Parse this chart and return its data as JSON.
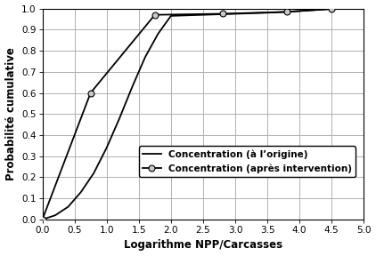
{
  "line1_x": [
    0.0,
    0.2,
    0.4,
    0.6,
    0.8,
    1.0,
    1.2,
    1.4,
    1.6,
    1.8,
    2.0,
    2.5,
    2.8,
    3.0,
    3.5,
    3.8,
    4.0,
    4.5
  ],
  "line1_y": [
    0.0,
    0.02,
    0.06,
    0.13,
    0.22,
    0.34,
    0.48,
    0.63,
    0.77,
    0.88,
    0.965,
    0.97,
    0.973,
    0.975,
    0.98,
    0.984,
    0.988,
    0.998
  ],
  "line2_x": [
    0.0,
    0.75,
    1.75,
    2.8,
    3.8,
    4.5
  ],
  "line2_y": [
    0.0,
    0.6,
    0.97,
    0.975,
    0.984,
    0.998
  ],
  "line1_color": "#000000",
  "line2_color": "#000000",
  "line1_label": "Concentration (à l’origine)",
  "line2_label": "Concentration (après intervention)",
  "xlabel": "Logarithme NPP/Carcasses",
  "ylabel": "Probabilité cumulative",
  "xlim": [
    0.0,
    5.0
  ],
  "ylim": [
    0.0,
    1.0
  ],
  "xticks": [
    0.0,
    0.5,
    1.0,
    1.5,
    2.0,
    2.5,
    3.0,
    3.5,
    4.0,
    4.5,
    5.0
  ],
  "yticks": [
    0.0,
    0.1,
    0.2,
    0.3,
    0.4,
    0.5,
    0.6,
    0.7,
    0.8,
    0.9,
    1.0
  ],
  "xtick_labels": [
    "0.0",
    "0.5",
    "1.0",
    "1.5",
    "2.0",
    "2.5",
    "3.0",
    "3.5",
    "4.0",
    "4.5",
    "5.0"
  ],
  "ytick_labels": [
    "0.0",
    "0.1",
    "0.2",
    "0.3",
    "0.4",
    "0.5",
    "0.6",
    "0.7",
    "0.8",
    "0.9",
    "1.0"
  ],
  "grid_color": "#b0b0b0",
  "background_color": "#ffffff",
  "legend_fontsize": 7.5,
  "axis_fontsize": 8.5,
  "tick_fontsize": 7.5,
  "line_width": 1.3,
  "marker_size": 5,
  "marker_face_color": "#c8c8c8"
}
